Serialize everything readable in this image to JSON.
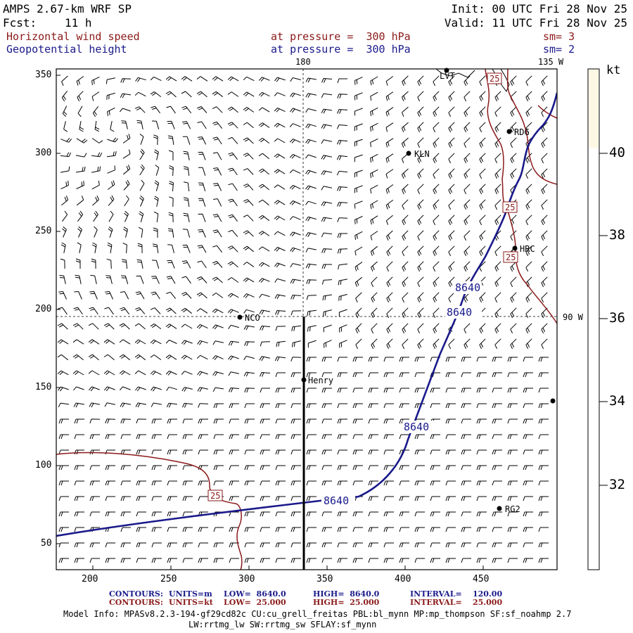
{
  "header": {
    "model_title": "AMPS 2.67-km WRF SP",
    "forecast_label": "Fcst:",
    "forecast_value": "11 h",
    "init_text": "Init: 00 UTC Fri 28 Nov 25",
    "valid_text": "Valid: 11 UTC Fri 28 Nov 25",
    "field1_name": "Horizontal wind speed",
    "field1_level": "at pressure =  300 hPa",
    "field1_sm": "sm= 3",
    "field2_name": "Geopotential height",
    "field2_level": "at pressure =  300 hPa",
    "field2_sm": "sm= 2"
  },
  "map": {
    "lon_labels": {
      "top_180": "180",
      "top_135w": "135 W",
      "right_90w": "90 W"
    },
    "x_ticks": [
      "200",
      "250",
      "300",
      "350",
      "400",
      "450"
    ],
    "y_ticks": [
      "50",
      "100",
      "150",
      "200",
      "250",
      "300",
      "350"
    ],
    "stations": [
      {
        "name": "LVT"
      },
      {
        "name": "RDG"
      },
      {
        "name": "KLN"
      },
      {
        "name": "HRC"
      },
      {
        "name": "NCO"
      },
      {
        "name": "Henry"
      },
      {
        "name": "RG2"
      }
    ],
    "speed_contour_labels": [
      "25",
      "25",
      "25",
      "25"
    ],
    "height_contour_labels": [
      "8640",
      "8640",
      "8640",
      "8640"
    ]
  },
  "colorbar": {
    "unit": "kt",
    "ticks": [
      "40",
      "38",
      "36",
      "34",
      "32"
    ]
  },
  "footer": {
    "c1_label": "CONTOURS:",
    "c1_units": "UNITS=m",
    "c1_low": "LOW=  8640.0",
    "c1_high": "HIGH=  8640.0",
    "c1_interval": "INTERVAL=    120.00",
    "c2_label": "CONTOURS:",
    "c2_units": "UNITS=kt",
    "c2_low": "LOW=  25.000",
    "c2_high": "HIGH=  25.000",
    "c2_interval": "INTERVAL=    25.000",
    "model_info": "Model Info: MPASv8.2.3-194-gf29cd82c CU:cu_grell_freitas PBL:bl_mynn MP:mp_thompson SF:sf_noahmp 2.7",
    "model_info2": "LW:rrtmg_lw SW:rrtmg_sw SFLAY:sf_mynn"
  },
  "colors": {
    "speed_contour": "#8b1a1a",
    "height_contour": "#1a1a8b",
    "colorbar_top": "#fdf8e4"
  }
}
